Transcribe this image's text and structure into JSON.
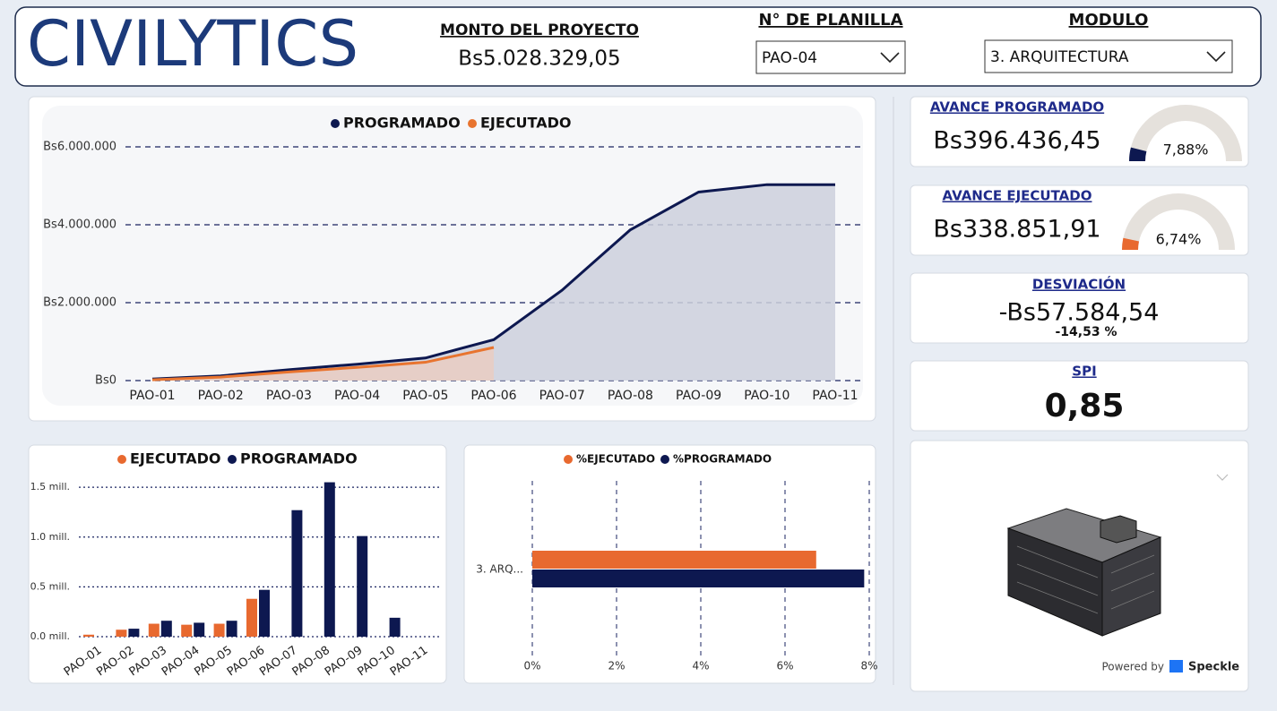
{
  "header": {
    "logo": "CIVILYTICS",
    "project_amount_label": "MONTO DEL PROYECTO",
    "project_amount": "Bs5.028.329,05",
    "planilla_label": "N° DE PLANILLA",
    "planilla_selected": "PAO-04",
    "module_label": "MODULO",
    "module_selected": "3. ARQUITECTURA"
  },
  "chart_data": [
    {
      "type": "line",
      "area": true,
      "categories": [
        "PAO-01",
        "PAO-02",
        "PAO-03",
        "PAO-04",
        "PAO-05",
        "PAO-06",
        "PAO-07",
        "PAO-08",
        "PAO-09",
        "PAO-10",
        "PAO-11"
      ],
      "series": [
        {
          "name": "PROGRAMADO",
          "color": "#0d1850",
          "fill": "#cdd0dd",
          "values": [
            40000,
            120000,
            280000,
            420000,
            580000,
            1050000,
            2320000,
            3870000,
            4840000,
            5030000,
            5030000
          ]
        },
        {
          "name": "EJECUTADO",
          "color": "#e8742f",
          "fill": "#e9cdc2",
          "values": [
            20000,
            90000,
            220000,
            340000,
            470000,
            850000,
            null,
            null,
            null,
            null,
            null
          ]
        }
      ],
      "ylim": [
        0,
        6000000
      ],
      "yticks": [
        {
          "value": 0,
          "label": "Bs0"
        },
        {
          "value": 2000000,
          "label": "Bs2.000.000"
        },
        {
          "value": 4000000,
          "label": "Bs4.000.000"
        },
        {
          "value": 6000000,
          "label": "Bs6.000.000"
        }
      ],
      "grid": true
    },
    {
      "type": "bar",
      "categories": [
        "PAO-01",
        "PAO-02",
        "PAO-03",
        "PAO-04",
        "PAO-05",
        "PAO-06",
        "PAO-07",
        "PAO-08",
        "PAO-09",
        "PAO-10",
        "PAO-11"
      ],
      "series": [
        {
          "name": "EJECUTADO",
          "color": "#e8692f",
          "values": [
            0.02,
            0.07,
            0.13,
            0.12,
            0.13,
            0.38,
            null,
            null,
            null,
            null,
            null
          ]
        },
        {
          "name": "PROGRAMADO",
          "color": "#0d1850",
          "values": [
            null,
            0.08,
            0.16,
            0.14,
            0.16,
            0.47,
            1.27,
            1.55,
            1.01,
            0.19,
            null
          ]
        }
      ],
      "ylim": [
        0,
        1.6
      ],
      "yticks": [
        {
          "value": 0,
          "label": "0.0 mill."
        },
        {
          "value": 0.5,
          "label": "0.5 mill."
        },
        {
          "value": 1,
          "label": "1.0 mill."
        },
        {
          "value": 1.5,
          "label": "1.5 mill."
        }
      ],
      "grid": true
    },
    {
      "type": "hbar",
      "categories": [
        "3. ARQ..."
      ],
      "series": [
        {
          "name": "%EJECUTADO",
          "color": "#e8692f",
          "values": [
            6.74
          ]
        },
        {
          "name": "%PROGRAMADO",
          "color": "#0d1850",
          "values": [
            7.88
          ]
        }
      ],
      "xlim": [
        0,
        8
      ],
      "xticks": [
        {
          "value": 0,
          "label": "0%"
        },
        {
          "value": 2,
          "label": "2%"
        },
        {
          "value": 4,
          "label": "4%"
        },
        {
          "value": 6,
          "label": "6%"
        },
        {
          "value": 8,
          "label": "8%"
        }
      ],
      "grid": true
    }
  ],
  "cards": [
    {
      "title": "AVANCE PROGRAMADO",
      "value": "Bs396.436,45",
      "gauge": {
        "value": 7.88,
        "label": "7,88%",
        "range": [
          0,
          100
        ],
        "color": "#0d1850"
      }
    },
    {
      "title": "AVANCE EJECUTADO",
      "value": "Bs338.851,91",
      "gauge": {
        "value": 6.74,
        "label": "6,74%",
        "range": [
          0,
          100
        ],
        "color": "#e8692f"
      }
    },
    {
      "title": "DESVIACIÓN",
      "value": "-Bs57.584,54",
      "subvalue": "-14,53 %"
    },
    {
      "title": "SPI",
      "value": "0,85"
    }
  ],
  "viewer": {
    "powered_by": "Powered by",
    "brand": "Speckle"
  }
}
